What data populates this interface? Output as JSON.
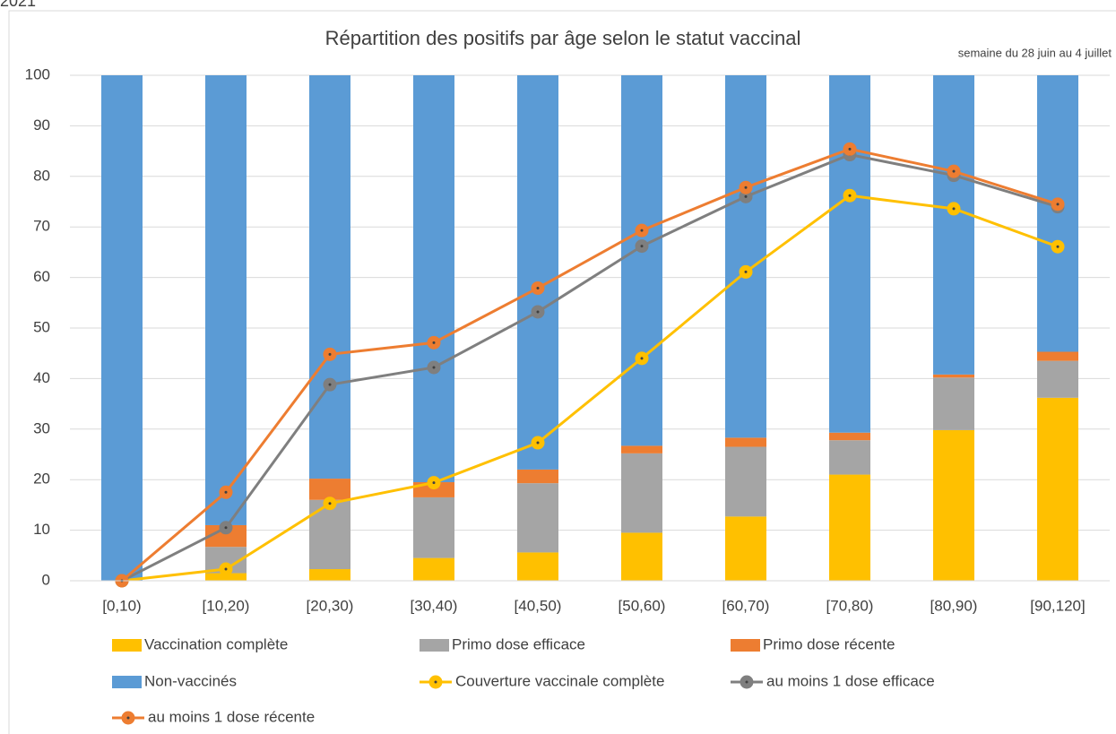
{
  "chart_data": {
    "type": "bar",
    "corner_text": "2021",
    "title": "Répartition des positifs par âge selon le statut vaccinal",
    "subtitle": "semaine du 28 juin au 4 juillet",
    "categories": [
      "[0,10)",
      "[10,20)",
      "[20,30)",
      "[30,40)",
      "[40,50)",
      "[50,60)",
      "[60,70)",
      "[70,80)",
      "[80,90)",
      "[90,120]"
    ],
    "series": [
      {
        "name": "Vaccination complète",
        "type": "bar",
        "color": "#ffc000",
        "values": [
          0,
          1.5,
          2.3,
          4.5,
          5.6,
          9.5,
          12.7,
          21,
          29.8,
          36.2
        ]
      },
      {
        "name": "Primo dose efficace",
        "type": "bar",
        "color": "#a5a5a5",
        "values": [
          0,
          5.2,
          13.7,
          12,
          13.7,
          15.7,
          13.8,
          6.8,
          10.4,
          7.3
        ]
      },
      {
        "name": "Primo dose récente",
        "type": "bar",
        "color": "#ed7d31",
        "values": [
          0,
          4.3,
          4.2,
          3,
          2.7,
          1.5,
          1.8,
          1.5,
          0.6,
          1.8
        ]
      },
      {
        "name": "Non-vaccinés",
        "type": "bar",
        "color": "#5b9bd5",
        "values": [
          100,
          89,
          79.8,
          80.5,
          78,
          73.3,
          71.7,
          70.7,
          59.2,
          54.7
        ]
      },
      {
        "name": "Couverture vaccinale complète",
        "type": "line",
        "color": "#ffc000",
        "values": [
          0,
          2.3,
          15.3,
          19.4,
          27.3,
          44,
          61.1,
          76.2,
          73.6,
          66.1
        ]
      },
      {
        "name": "au moins 1 dose efficace",
        "type": "line",
        "color": "#7f7f7f",
        "values": [
          0,
          10.5,
          38.8,
          42.2,
          53.2,
          66.2,
          76,
          84.3,
          80.2,
          74
        ]
      },
      {
        "name": "au moins 1 dose récente",
        "type": "line",
        "color": "#ed7d31",
        "values": [
          0,
          17.5,
          44.8,
          47.1,
          57.9,
          69.3,
          77.8,
          85.4,
          81,
          74.5
        ]
      }
    ],
    "ylim": [
      0,
      100
    ],
    "yticks": [
      0,
      10,
      20,
      30,
      40,
      50,
      60,
      70,
      80,
      90,
      100
    ],
    "grid": true
  }
}
